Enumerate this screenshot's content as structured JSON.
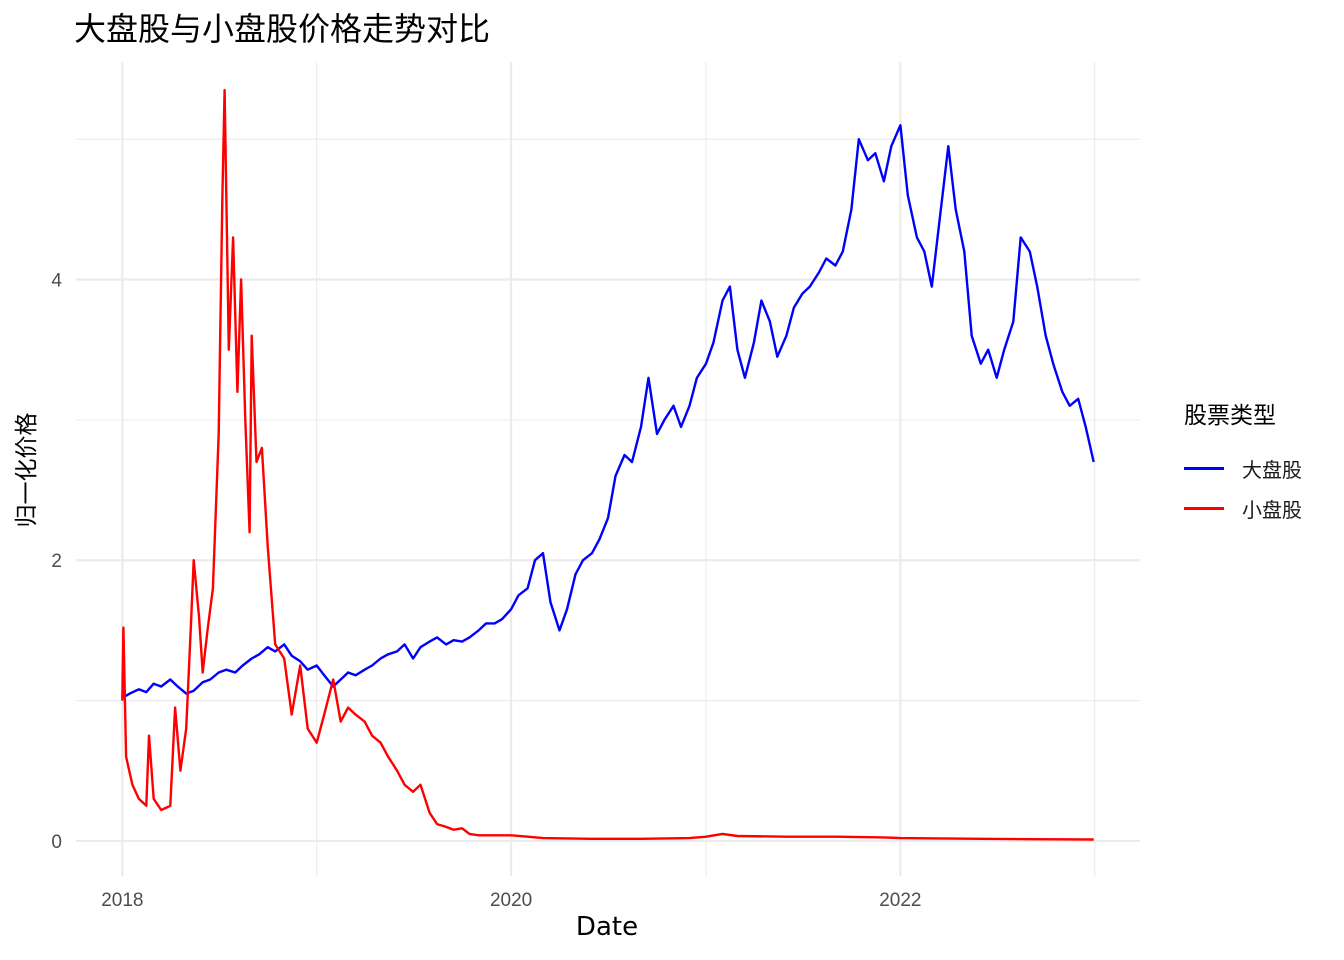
{
  "title": "大盘股与小盘股价格走势对比",
  "chart_data": {
    "type": "line",
    "title": "大盘股与小盘股价格走势对比",
    "xlabel": "Date",
    "ylabel": "归一化价格",
    "x_ticks": [
      "2018",
      "2020",
      "2022"
    ],
    "y_ticks": [
      "0",
      "2",
      "4"
    ],
    "xlim": [
      "2017-10-06",
      "2023-03-27"
    ],
    "ylim": [
      -0.25,
      5.55
    ],
    "grid": true,
    "legend": {
      "title": "股票类型",
      "position": "right"
    },
    "series": [
      {
        "name": "大盘股",
        "color": "#0000ff",
        "points": [
          [
            "2018-01-01",
            1.02
          ],
          [
            "2018-01-15",
            1.05
          ],
          [
            "2018-02-01",
            1.08
          ],
          [
            "2018-02-15",
            1.06
          ],
          [
            "2018-03-01",
            1.12
          ],
          [
            "2018-03-15",
            1.1
          ],
          [
            "2018-04-01",
            1.15
          ],
          [
            "2018-04-15",
            1.1
          ],
          [
            "2018-05-01",
            1.05
          ],
          [
            "2018-05-15",
            1.07
          ],
          [
            "2018-06-01",
            1.13
          ],
          [
            "2018-06-15",
            1.15
          ],
          [
            "2018-07-01",
            1.2
          ],
          [
            "2018-07-15",
            1.22
          ],
          [
            "2018-08-01",
            1.2
          ],
          [
            "2018-08-15",
            1.25
          ],
          [
            "2018-09-01",
            1.3
          ],
          [
            "2018-09-15",
            1.33
          ],
          [
            "2018-10-01",
            1.38
          ],
          [
            "2018-10-15",
            1.35
          ],
          [
            "2018-11-01",
            1.4
          ],
          [
            "2018-11-15",
            1.32
          ],
          [
            "2018-12-01",
            1.28
          ],
          [
            "2018-12-15",
            1.22
          ],
          [
            "2019-01-01",
            1.25
          ],
          [
            "2019-01-15",
            1.18
          ],
          [
            "2019-02-01",
            1.1
          ],
          [
            "2019-02-15",
            1.15
          ],
          [
            "2019-03-01",
            1.2
          ],
          [
            "2019-03-15",
            1.18
          ],
          [
            "2019-04-01",
            1.22
          ],
          [
            "2019-04-15",
            1.25
          ],
          [
            "2019-05-01",
            1.3
          ],
          [
            "2019-05-15",
            1.33
          ],
          [
            "2019-06-01",
            1.35
          ],
          [
            "2019-06-15",
            1.4
          ],
          [
            "2019-07-01",
            1.3
          ],
          [
            "2019-07-15",
            1.38
          ],
          [
            "2019-08-01",
            1.42
          ],
          [
            "2019-08-15",
            1.45
          ],
          [
            "2019-09-01",
            1.4
          ],
          [
            "2019-09-15",
            1.43
          ],
          [
            "2019-10-01",
            1.42
          ],
          [
            "2019-10-15",
            1.45
          ],
          [
            "2019-11-01",
            1.5
          ],
          [
            "2019-11-15",
            1.55
          ],
          [
            "2019-12-01",
            1.55
          ],
          [
            "2019-12-15",
            1.58
          ],
          [
            "2020-01-01",
            1.65
          ],
          [
            "2020-01-15",
            1.75
          ],
          [
            "2020-02-01",
            1.8
          ],
          [
            "2020-02-15",
            2.0
          ],
          [
            "2020-03-01",
            2.05
          ],
          [
            "2020-03-15",
            1.7
          ],
          [
            "2020-04-01",
            1.5
          ],
          [
            "2020-04-15",
            1.65
          ],
          [
            "2020-05-01",
            1.9
          ],
          [
            "2020-05-15",
            2.0
          ],
          [
            "2020-06-01",
            2.05
          ],
          [
            "2020-06-15",
            2.15
          ],
          [
            "2020-07-01",
            2.3
          ],
          [
            "2020-07-15",
            2.6
          ],
          [
            "2020-08-01",
            2.75
          ],
          [
            "2020-08-15",
            2.7
          ],
          [
            "2020-09-01",
            2.95
          ],
          [
            "2020-09-15",
            3.3
          ],
          [
            "2020-10-01",
            2.9
          ],
          [
            "2020-10-15",
            3.0
          ],
          [
            "2020-11-01",
            3.1
          ],
          [
            "2020-11-15",
            2.95
          ],
          [
            "2020-12-01",
            3.1
          ],
          [
            "2020-12-15",
            3.3
          ],
          [
            "2021-01-01",
            3.4
          ],
          [
            "2021-01-15",
            3.55
          ],
          [
            "2021-02-01",
            3.85
          ],
          [
            "2021-02-15",
            3.95
          ],
          [
            "2021-03-01",
            3.5
          ],
          [
            "2021-03-15",
            3.3
          ],
          [
            "2021-04-01",
            3.55
          ],
          [
            "2021-04-15",
            3.85
          ],
          [
            "2021-05-01",
            3.7
          ],
          [
            "2021-05-15",
            3.45
          ],
          [
            "2021-06-01",
            3.6
          ],
          [
            "2021-06-15",
            3.8
          ],
          [
            "2021-07-01",
            3.9
          ],
          [
            "2021-07-15",
            3.95
          ],
          [
            "2021-08-01",
            4.05
          ],
          [
            "2021-08-15",
            4.15
          ],
          [
            "2021-09-01",
            4.1
          ],
          [
            "2021-09-15",
            4.2
          ],
          [
            "2021-10-01",
            4.5
          ],
          [
            "2021-10-15",
            5.0
          ],
          [
            "2021-11-01",
            4.85
          ],
          [
            "2021-11-15",
            4.9
          ],
          [
            "2021-12-01",
            4.7
          ],
          [
            "2021-12-15",
            4.95
          ],
          [
            "2022-01-01",
            5.1
          ],
          [
            "2022-01-15",
            4.6
          ],
          [
            "2022-02-01",
            4.3
          ],
          [
            "2022-02-15",
            4.2
          ],
          [
            "2022-03-01",
            3.95
          ],
          [
            "2022-03-15",
            4.4
          ],
          [
            "2022-04-01",
            4.95
          ],
          [
            "2022-04-15",
            4.5
          ],
          [
            "2022-05-01",
            4.2
          ],
          [
            "2022-05-15",
            3.6
          ],
          [
            "2022-06-01",
            3.4
          ],
          [
            "2022-06-15",
            3.5
          ],
          [
            "2022-07-01",
            3.3
          ],
          [
            "2022-07-15",
            3.5
          ],
          [
            "2022-08-01",
            3.7
          ],
          [
            "2022-08-15",
            4.3
          ],
          [
            "2022-09-01",
            4.2
          ],
          [
            "2022-09-15",
            3.95
          ],
          [
            "2022-10-01",
            3.6
          ],
          [
            "2022-10-15",
            3.4
          ],
          [
            "2022-11-01",
            3.2
          ],
          [
            "2022-11-15",
            3.1
          ],
          [
            "2022-12-01",
            3.15
          ],
          [
            "2022-12-15",
            2.95
          ],
          [
            "2022-12-30",
            2.7
          ]
        ]
      },
      {
        "name": "小盘股",
        "color": "#ff0000",
        "points": [
          [
            "2018-01-01",
            1.0
          ],
          [
            "2018-01-03",
            1.52
          ],
          [
            "2018-01-08",
            0.6
          ],
          [
            "2018-01-20",
            0.4
          ],
          [
            "2018-02-01",
            0.3
          ],
          [
            "2018-02-15",
            0.25
          ],
          [
            "2018-02-20",
            0.75
          ],
          [
            "2018-03-01",
            0.3
          ],
          [
            "2018-03-15",
            0.22
          ],
          [
            "2018-04-01",
            0.25
          ],
          [
            "2018-04-10",
            0.95
          ],
          [
            "2018-04-20",
            0.5
          ],
          [
            "2018-05-01",
            0.8
          ],
          [
            "2018-05-10",
            1.55
          ],
          [
            "2018-05-15",
            2.0
          ],
          [
            "2018-05-25",
            1.6
          ],
          [
            "2018-06-01",
            1.2
          ],
          [
            "2018-06-10",
            1.5
          ],
          [
            "2018-06-20",
            1.8
          ],
          [
            "2018-07-01",
            2.9
          ],
          [
            "2018-07-08",
            4.6
          ],
          [
            "2018-07-12",
            5.35
          ],
          [
            "2018-07-20",
            3.5
          ],
          [
            "2018-07-28",
            4.3
          ],
          [
            "2018-08-05",
            3.2
          ],
          [
            "2018-08-12",
            4.0
          ],
          [
            "2018-08-20",
            3.0
          ],
          [
            "2018-08-28",
            2.2
          ],
          [
            "2018-09-01",
            3.6
          ],
          [
            "2018-09-10",
            2.7
          ],
          [
            "2018-09-20",
            2.8
          ],
          [
            "2018-10-01",
            2.1
          ],
          [
            "2018-10-15",
            1.4
          ],
          [
            "2018-11-01",
            1.3
          ],
          [
            "2018-11-15",
            0.9
          ],
          [
            "2018-12-01",
            1.25
          ],
          [
            "2018-12-15",
            0.8
          ],
          [
            "2019-01-01",
            0.7
          ],
          [
            "2019-01-15",
            0.9
          ],
          [
            "2019-02-01",
            1.15
          ],
          [
            "2019-02-15",
            0.85
          ],
          [
            "2019-03-01",
            0.95
          ],
          [
            "2019-03-15",
            0.9
          ],
          [
            "2019-04-01",
            0.85
          ],
          [
            "2019-04-15",
            0.75
          ],
          [
            "2019-05-01",
            0.7
          ],
          [
            "2019-05-15",
            0.6
          ],
          [
            "2019-06-01",
            0.5
          ],
          [
            "2019-06-15",
            0.4
          ],
          [
            "2019-07-01",
            0.35
          ],
          [
            "2019-07-15",
            0.4
          ],
          [
            "2019-08-01",
            0.2
          ],
          [
            "2019-08-15",
            0.12
          ],
          [
            "2019-09-01",
            0.1
          ],
          [
            "2019-09-15",
            0.08
          ],
          [
            "2019-10-01",
            0.09
          ],
          [
            "2019-10-15",
            0.05
          ],
          [
            "2019-11-01",
            0.04
          ],
          [
            "2019-12-01",
            0.04
          ],
          [
            "2020-01-01",
            0.04
          ],
          [
            "2020-02-01",
            0.03
          ],
          [
            "2020-03-01",
            0.02
          ],
          [
            "2020-06-01",
            0.015
          ],
          [
            "2020-09-01",
            0.015
          ],
          [
            "2020-12-01",
            0.02
          ],
          [
            "2021-01-01",
            0.03
          ],
          [
            "2021-02-01",
            0.05
          ],
          [
            "2021-03-01",
            0.035
          ],
          [
            "2021-06-01",
            0.03
          ],
          [
            "2021-09-01",
            0.03
          ],
          [
            "2021-12-01",
            0.025
          ],
          [
            "2022-01-01",
            0.02
          ],
          [
            "2022-06-01",
            0.015
          ],
          [
            "2022-09-01",
            0.012
          ],
          [
            "2022-12-30",
            0.01
          ]
        ]
      }
    ]
  }
}
